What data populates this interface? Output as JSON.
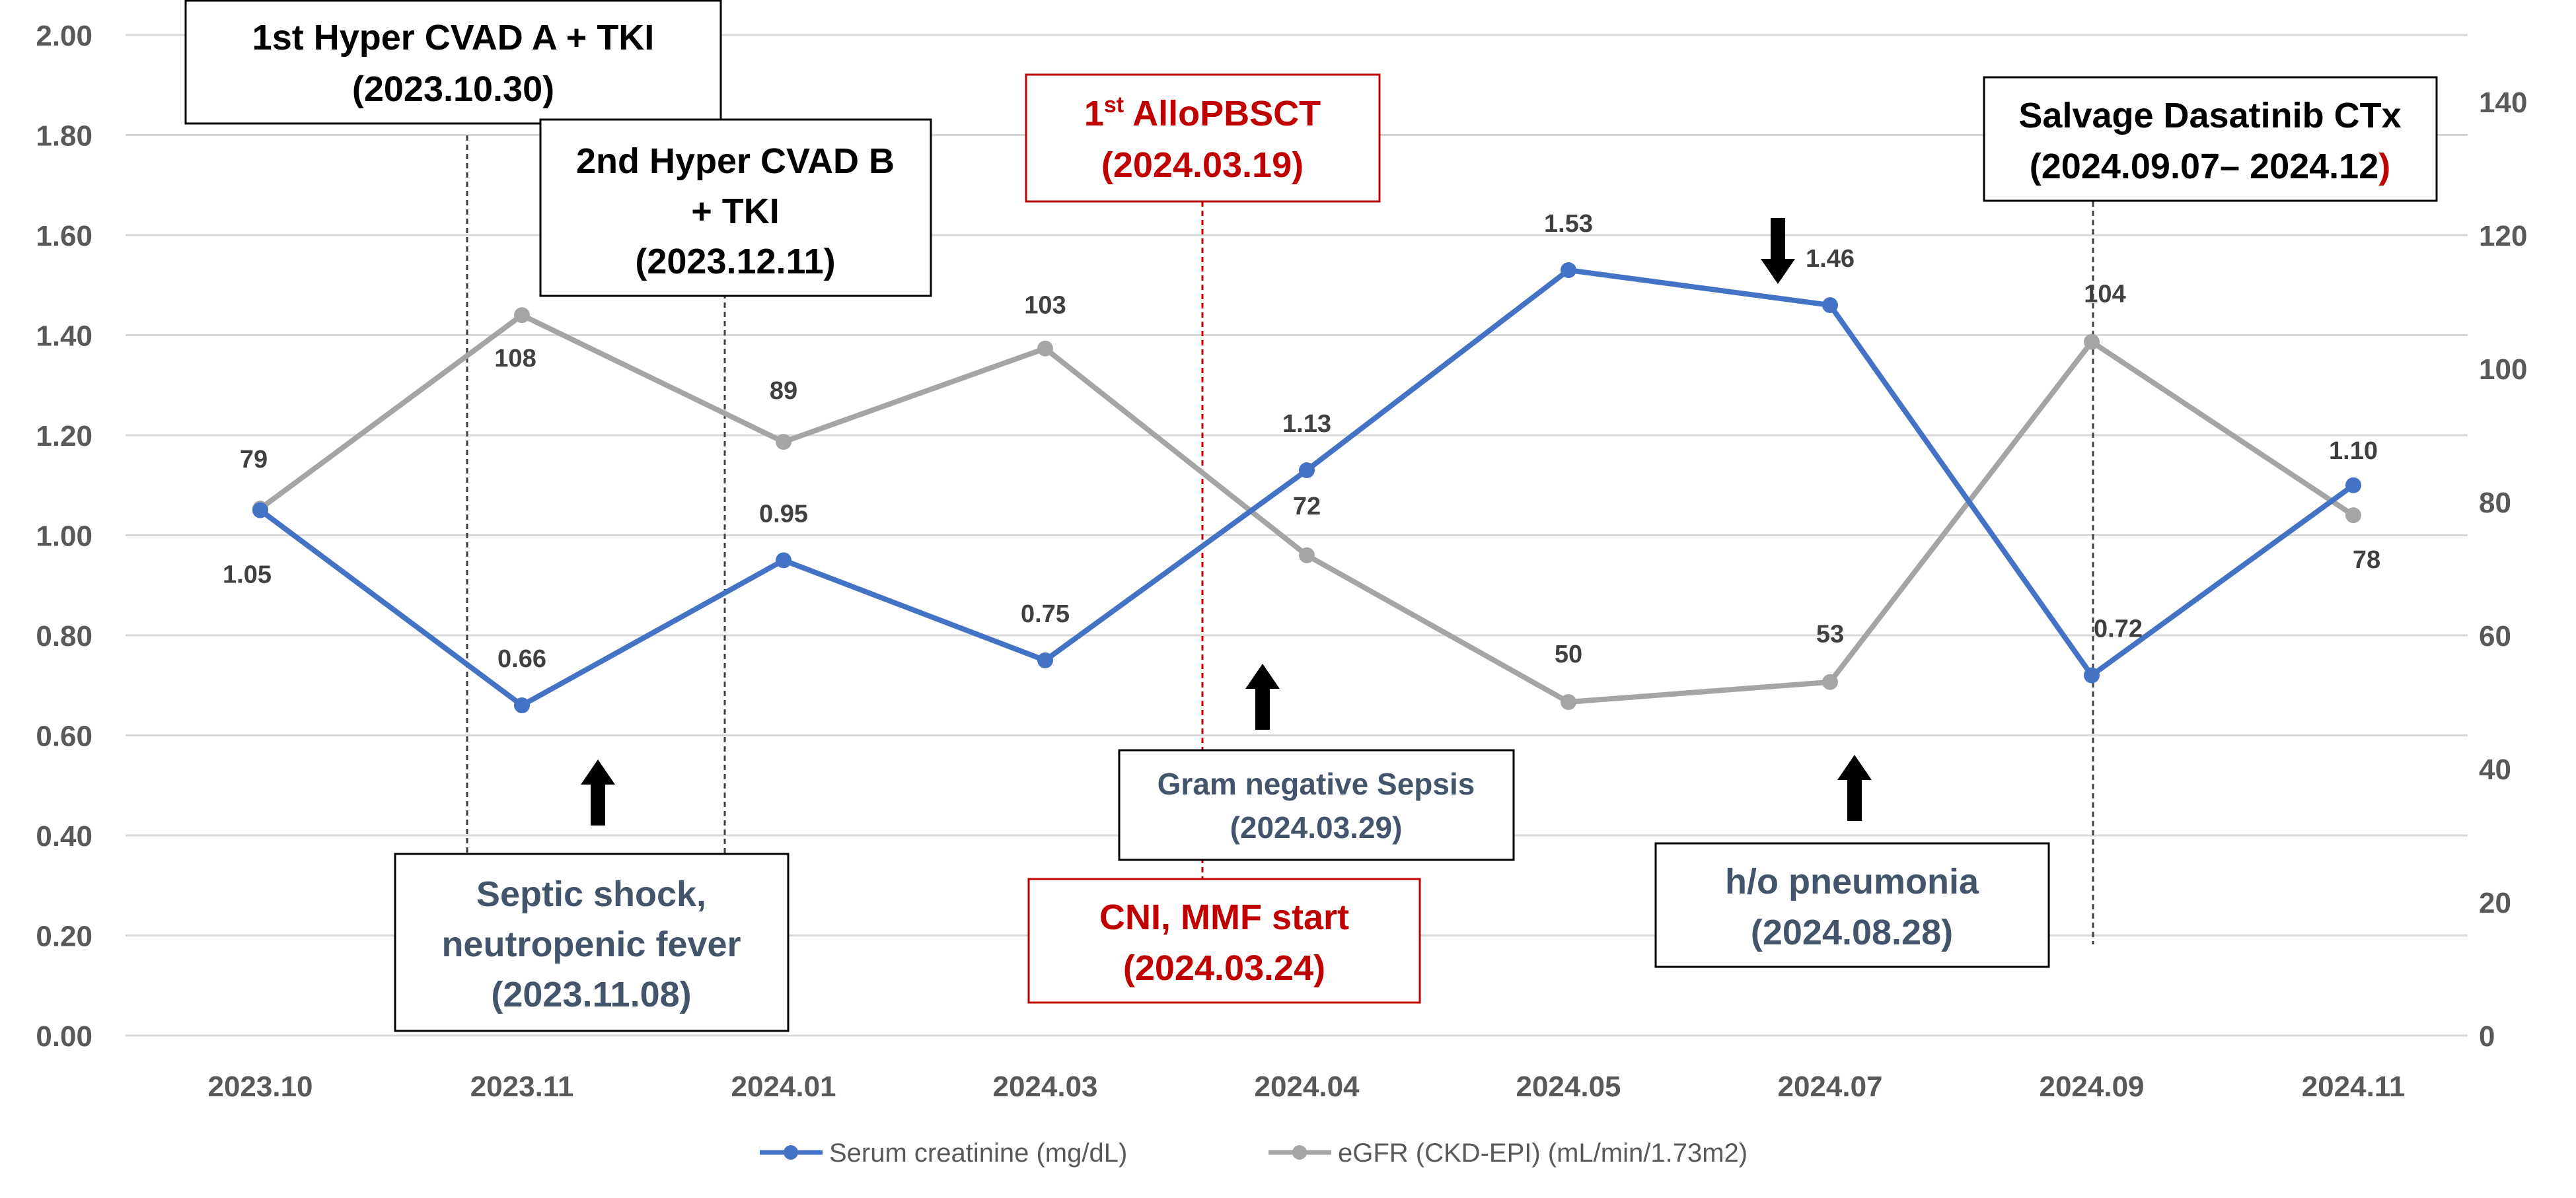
{
  "chart_data": {
    "type": "line",
    "categories": [
      "2023.10",
      "2023.11",
      "2024.01",
      "2024.03",
      "2024.04",
      "2024.05",
      "2024.07",
      "2024.09",
      "2024.11"
    ],
    "series": [
      {
        "name": "Serum creatinine (mg/dL)",
        "axis": "left",
        "color": "#4472c4",
        "values": [
          1.05,
          0.66,
          0.95,
          0.75,
          1.13,
          1.53,
          1.46,
          0.72,
          1.1
        ],
        "labels": [
          "1.05",
          "0.66",
          "0.95",
          "0.75",
          "1.13",
          "1.53",
          "1.46",
          "0.72",
          "1.10"
        ]
      },
      {
        "name": "eGFR (CKD-EPI) (mL/min/1.73m2)",
        "axis": "right",
        "color": "#a5a5a5",
        "values": [
          79,
          108,
          89,
          103,
          72,
          50,
          53,
          104,
          78
        ],
        "labels": [
          "79",
          "108",
          "89",
          "103",
          "72",
          "50",
          "53",
          "104",
          "78"
        ]
      }
    ],
    "y_left": {
      "min": 0,
      "max": 2,
      "ticks": [
        "0.00",
        "0.20",
        "0.40",
        "0.60",
        "0.80",
        "1.00",
        "1.20",
        "1.40",
        "1.60",
        "1.80",
        "2.00"
      ]
    },
    "y_right": {
      "min": 0,
      "max": 150,
      "ticks": [
        "0",
        "20",
        "40",
        "60",
        "80",
        "100",
        "120",
        "140"
      ]
    },
    "grid": true,
    "legend_position": "bottom",
    "annotations": {
      "hyper_cvad_a": {
        "lines": [
          "1st Hyper CVAD A + TKI",
          "(2023.10.30)"
        ],
        "color": "#000000"
      },
      "hyper_cvad_b": {
        "lines": [
          "2nd Hyper CVAD B",
          "+ TKI",
          "(2023.12.11)"
        ],
        "color": "#000000"
      },
      "allo_pbsct": {
        "prefix": "1",
        "superscript": "st",
        "suffix": " AlloPBSCT",
        "date": "(2024.03.19)",
        "color": "#c00000"
      },
      "salvage_dasatinib": {
        "line1": "Salvage Dasatinib CTx",
        "line2_main": "(2024.09.07– 2024.12",
        "line2_end": ")",
        "color": "#000000",
        "end_color": "#c00000"
      },
      "septic_shock": {
        "lines": [
          "Septic shock,",
          "neutropenic fever",
          "(2023.11.08)"
        ],
        "color": "#44546a"
      },
      "gram_negative_sepsis": {
        "lines": [
          "Gram negative Sepsis",
          "(2024.03.29)"
        ],
        "color": "#44546a"
      },
      "cni_mmf_start": {
        "lines": [
          "CNI, MMF start",
          "(2024.03.24)"
        ],
        "color": "#c00000"
      },
      "pneumonia": {
        "lines": [
          "h/o pneumonia",
          "(2024.08.28)"
        ],
        "color": "#44546a"
      }
    }
  }
}
